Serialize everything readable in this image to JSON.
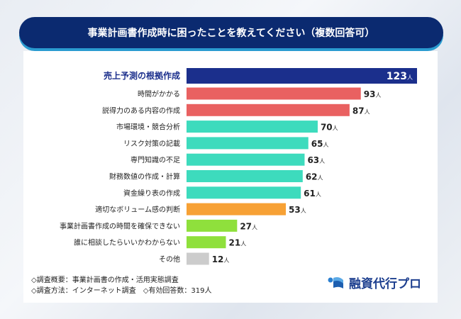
{
  "chart_data": {
    "type": "bar",
    "orientation": "horizontal",
    "title": "事業計画書作成時に困ったことを教えてください（複数回答可）",
    "categories": [
      "売上予測の根拠作成",
      "時間がかかる",
      "説得力のある内容の作成",
      "市場環境・競合分析",
      "リスク対策の記載",
      "専門知識の不足",
      "財務数値の作成・計算",
      "資金繰り表の作成",
      "適切なボリューム感の判断",
      "事業計画書作成の時間を確保できない",
      "誰に相談したらいいかわからない",
      "その他"
    ],
    "values": [
      123,
      93,
      87,
      70,
      65,
      63,
      62,
      61,
      53,
      27,
      21,
      12
    ],
    "unit": "人",
    "colors": [
      "#1b2f8c",
      "#e96161",
      "#e96161",
      "#3ddbbd",
      "#3ddbbd",
      "#3ddbbd",
      "#3ddbbd",
      "#3ddbbd",
      "#f7a135",
      "#8fe03c",
      "#8fe03c",
      "#cccccc"
    ],
    "grid": false
  },
  "footer": {
    "line1": "◇調査概要：事業計画書の作成・活用実態調査",
    "line2": "◇調査方法：インターネット調査　◇有効回答数：319人"
  },
  "logo": {
    "text": "融資代行プロ",
    "icon": "wave-logo-icon"
  }
}
